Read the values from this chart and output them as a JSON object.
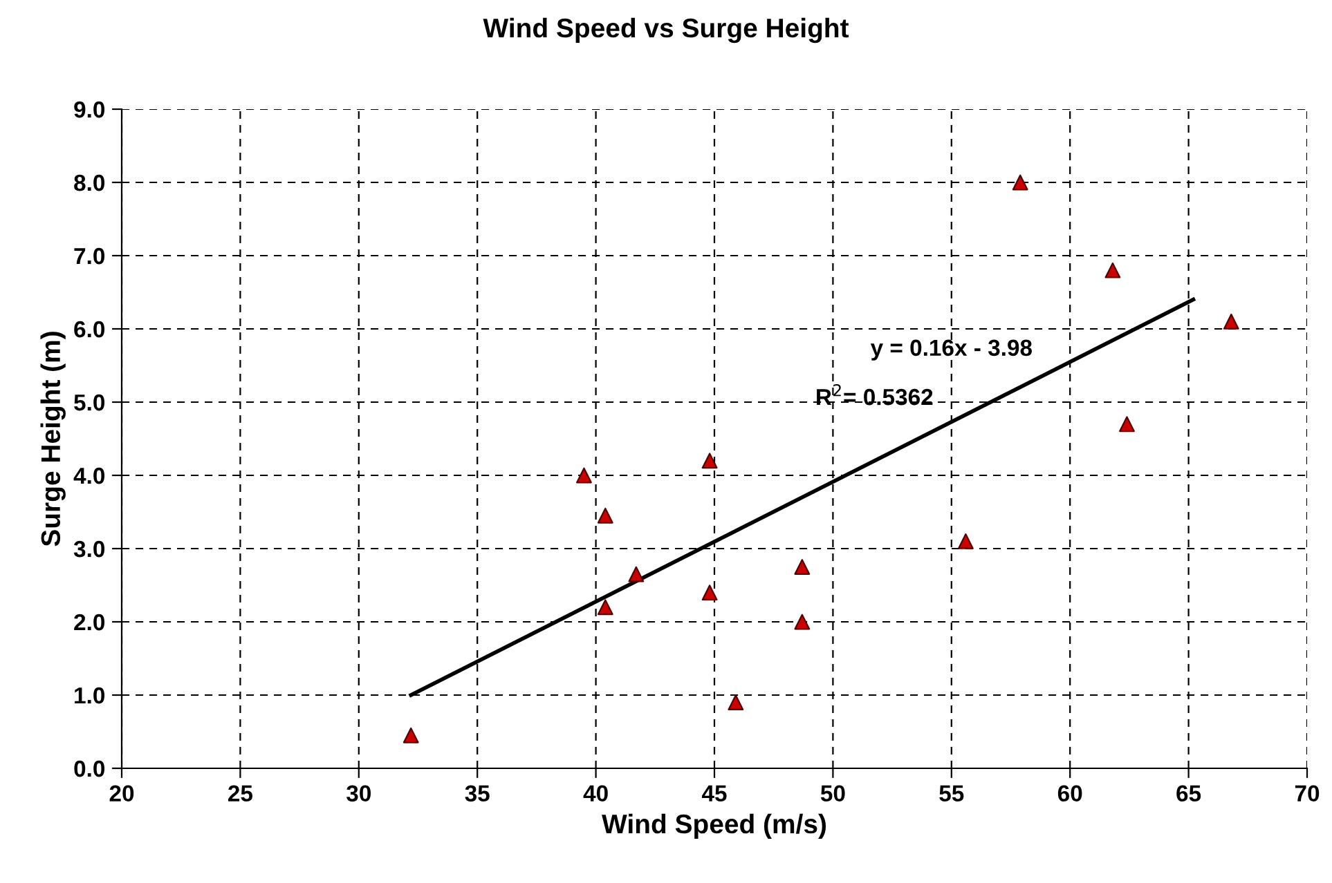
{
  "chart_data": {
    "type": "scatter",
    "title": "Wind Speed vs Surge Height",
    "xlabel": "Wind Speed (m/s)",
    "ylabel": "Surge Height (m)",
    "series": [
      {
        "color": "#cc0000",
        "marker": "triangle",
        "x": [
          32.2,
          39.5,
          40.4,
          40.4,
          41.7,
          44.8,
          44.8,
          45.9,
          48.7,
          48.7,
          55.6,
          57.9,
          61.8,
          62.4,
          66.8
        ],
        "values": [
          0.45,
          4.0,
          3.45,
          2.2,
          2.65,
          4.2,
          2.4,
          0.9,
          2.75,
          2.0,
          3.1,
          8.0,
          6.8,
          4.7,
          6.1
        ]
      },
      {
        "type": "line",
        "color": "#000000",
        "marker": "none",
        "line_style": "solid",
        "x": [
          32.2,
          65.2
        ],
        "values": [
          1.0,
          6.4
        ]
      }
    ],
    "annotations": [
      "y = 0.16x - 3.98",
      "R$^{2}$= 0.5362"
    ],
    "xlim": [
      20,
      70
    ],
    "xticks": [
      20,
      25,
      30,
      35,
      40,
      45,
      50,
      55,
      60,
      65,
      70
    ],
    "ylim": [
      0,
      9
    ],
    "yticks": [
      {
        "value": 0,
        "label": "0.0"
      },
      {
        "value": 1,
        "label": "1.0"
      },
      {
        "value": 2,
        "label": "2.0"
      },
      {
        "value": 3,
        "label": "3.0"
      },
      {
        "value": 4,
        "label": "4.0"
      },
      {
        "value": 5,
        "label": "5.0"
      },
      {
        "value": 6,
        "label": "6.0"
      },
      {
        "value": 7,
        "label": "7.0"
      },
      {
        "value": 8,
        "label": "8.0"
      },
      {
        "value": 9,
        "label": "9.0"
      }
    ],
    "grid": true
  }
}
